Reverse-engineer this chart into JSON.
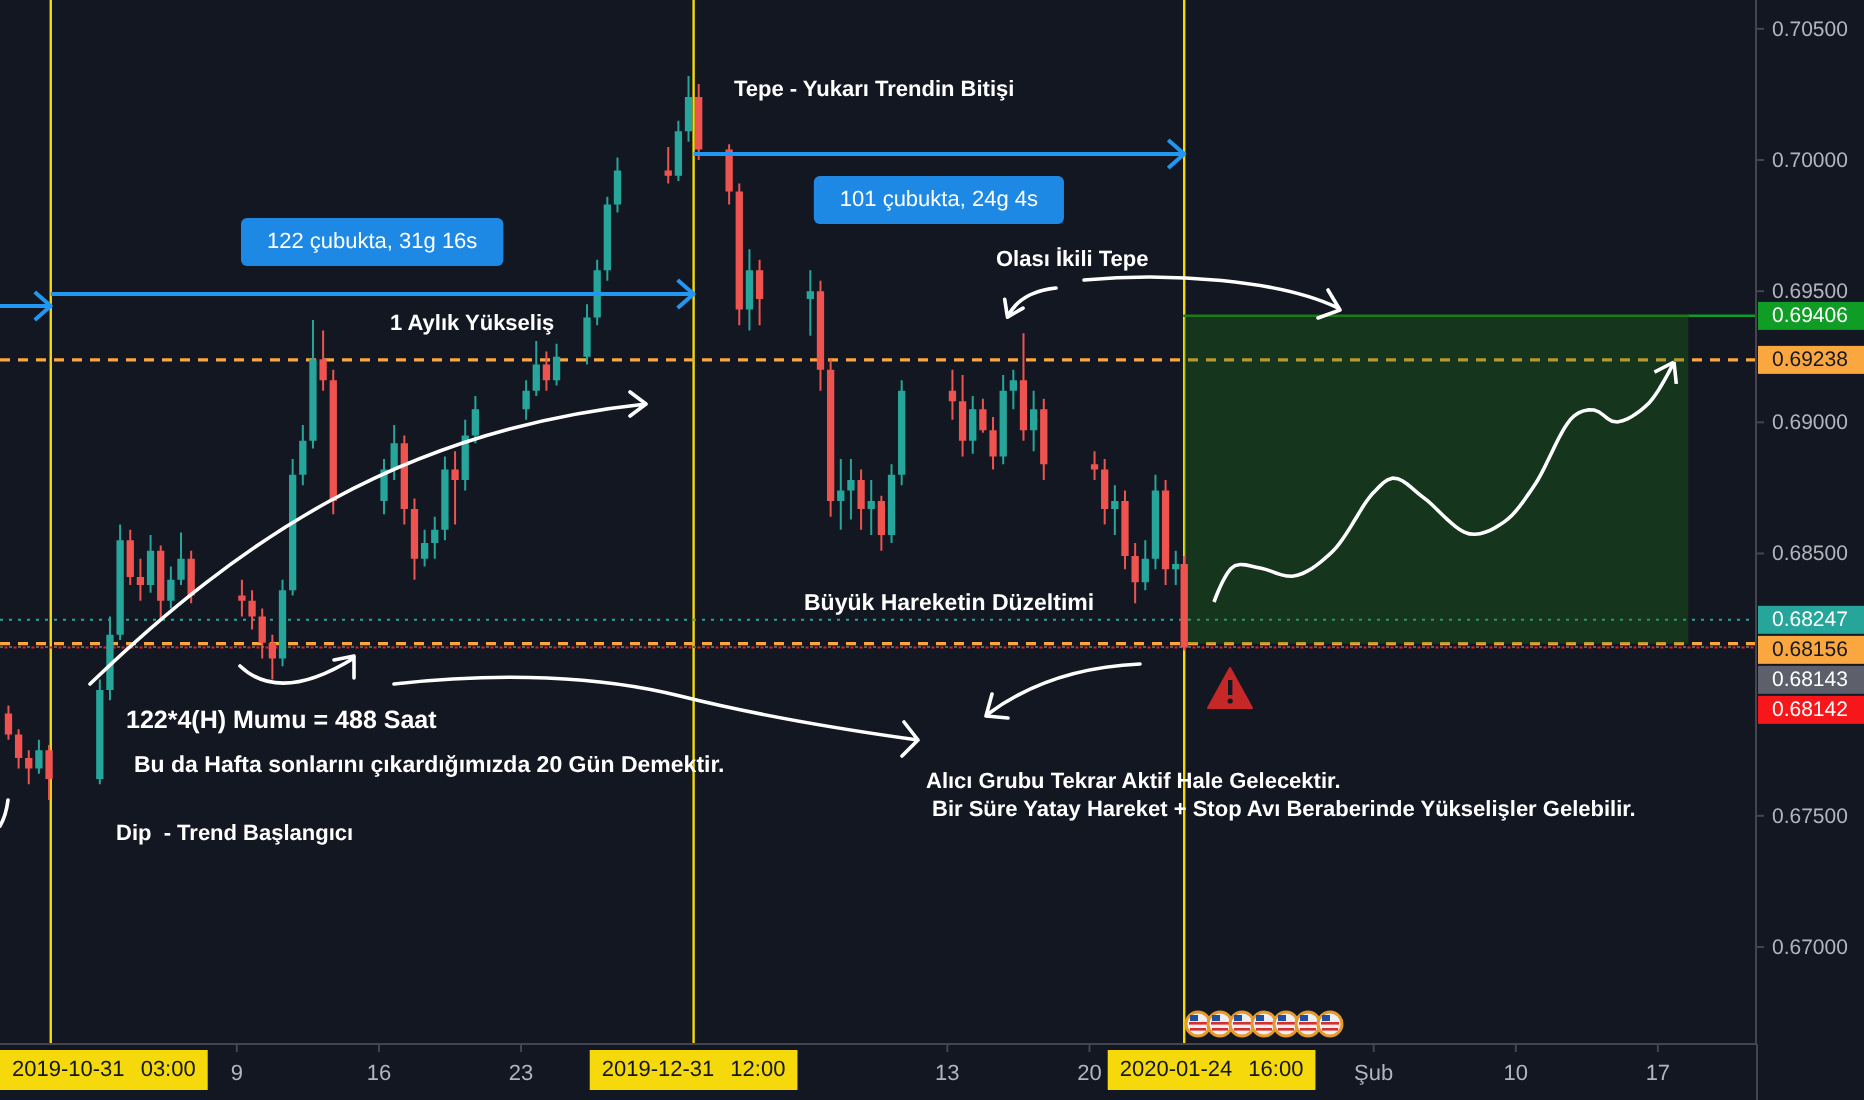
{
  "chart_data": {
    "type": "candlestick",
    "x": [
      "2019-11-27T18:00",
      "2019-11-28T06:00",
      "2019-11-28T18:00",
      "2019-11-29T06:00",
      "2019-11-29T18:00",
      "2019-12-02T06:00",
      "2019-12-02T18:00",
      "2019-12-03T06:00",
      "2019-12-03T18:00",
      "2019-12-04T06:00",
      "2019-12-04T18:00",
      "2019-12-05T06:00",
      "2019-12-05T18:00",
      "2019-12-06T06:00",
      "2019-12-06T18:00",
      "2019-12-09T06:00",
      "2019-12-09T18:00",
      "2019-12-10T06:00",
      "2019-12-10T18:00",
      "2019-12-11T06:00",
      "2019-12-11T18:00",
      "2019-12-12T06:00",
      "2019-12-12T18:00",
      "2019-12-13T06:00",
      "2019-12-13T18:00",
      "2019-12-16T06:00",
      "2019-12-16T18:00",
      "2019-12-17T06:00",
      "2019-12-17T18:00",
      "2019-12-18T06:00",
      "2019-12-18T18:00",
      "2019-12-19T06:00",
      "2019-12-19T18:00",
      "2019-12-20T06:00",
      "2019-12-20T18:00",
      "2019-12-23T06:00",
      "2019-12-23T18:00",
      "2019-12-24T06:00",
      "2019-12-24T18:00",
      "2019-12-26T06:00",
      "2019-12-26T18:00",
      "2019-12-27T06:00",
      "2019-12-27T18:00",
      "2019-12-30T06:00",
      "2019-12-30T18:00",
      "2019-12-31T06:00",
      "2019-12-31T18:00",
      "2020-01-02T06:00",
      "2020-01-02T18:00",
      "2020-01-03T06:00",
      "2020-01-03T18:00",
      "2020-01-06T06:00",
      "2020-01-06T18:00",
      "2020-01-07T06:00",
      "2020-01-07T18:00",
      "2020-01-08T06:00",
      "2020-01-08T18:00",
      "2020-01-09T06:00",
      "2020-01-09T18:00",
      "2020-01-10T06:00",
      "2020-01-10T18:00",
      "2020-01-13T06:00",
      "2020-01-13T18:00",
      "2020-01-14T06:00",
      "2020-01-14T18:00",
      "2020-01-15T06:00",
      "2020-01-15T18:00",
      "2020-01-16T06:00",
      "2020-01-16T18:00",
      "2020-01-17T06:00",
      "2020-01-17T18:00",
      "2020-01-20T06:00",
      "2020-01-20T18:00",
      "2020-01-21T06:00",
      "2020-01-21T18:00",
      "2020-01-22T06:00",
      "2020-01-22T18:00",
      "2020-01-23T06:00",
      "2020-01-23T18:00",
      "2020-01-24T06:00",
      "2020-01-24T16:00"
    ],
    "ohlc": [
      [
        0.6789,
        0.6792,
        0.6779,
        0.6781
      ],
      [
        0.6781,
        0.6783,
        0.6768,
        0.6772
      ],
      [
        0.6772,
        0.6775,
        0.6762,
        0.6768
      ],
      [
        0.6768,
        0.6779,
        0.6766,
        0.6775
      ],
      [
        0.6775,
        0.6777,
        0.6756,
        0.6764
      ],
      [
        0.6764,
        0.6802,
        0.6762,
        0.6798
      ],
      [
        0.6798,
        0.6826,
        0.6794,
        0.6819
      ],
      [
        0.6819,
        0.6861,
        0.6817,
        0.6855
      ],
      [
        0.6855,
        0.6859,
        0.6838,
        0.6841
      ],
      [
        0.6841,
        0.6848,
        0.6832,
        0.6838
      ],
      [
        0.6838,
        0.6857,
        0.6835,
        0.6851
      ],
      [
        0.6851,
        0.6853,
        0.6825,
        0.6832
      ],
      [
        0.6832,
        0.6845,
        0.6829,
        0.684
      ],
      [
        0.684,
        0.6858,
        0.6838,
        0.6848
      ],
      [
        0.6848,
        0.6851,
        0.6831,
        0.6834
      ],
      [
        0.6834,
        0.684,
        0.6826,
        0.6832
      ],
      [
        0.6832,
        0.6836,
        0.6821,
        0.6826
      ],
      [
        0.6826,
        0.6829,
        0.681,
        0.6816
      ],
      [
        0.6816,
        0.6819,
        0.6802,
        0.681
      ],
      [
        0.681,
        0.684,
        0.6807,
        0.6836
      ],
      [
        0.6836,
        0.6886,
        0.6834,
        0.688
      ],
      [
        0.688,
        0.6899,
        0.6876,
        0.6893
      ],
      [
        0.6893,
        0.6939,
        0.689,
        0.6924
      ],
      [
        0.6924,
        0.6935,
        0.6912,
        0.6916
      ],
      [
        0.6916,
        0.692,
        0.6865,
        0.687
      ],
      [
        0.687,
        0.6886,
        0.6865,
        0.6882
      ],
      [
        0.6882,
        0.6899,
        0.6878,
        0.6892
      ],
      [
        0.6892,
        0.6895,
        0.6861,
        0.6867
      ],
      [
        0.6867,
        0.6871,
        0.684,
        0.6848
      ],
      [
        0.6848,
        0.6859,
        0.6845,
        0.6854
      ],
      [
        0.6854,
        0.6864,
        0.6848,
        0.6859
      ],
      [
        0.6859,
        0.6887,
        0.6855,
        0.6882
      ],
      [
        0.6882,
        0.6889,
        0.6861,
        0.6878
      ],
      [
        0.6878,
        0.6901,
        0.6874,
        0.6895
      ],
      [
        0.6895,
        0.691,
        0.6892,
        0.6905
      ],
      [
        0.6905,
        0.6916,
        0.6901,
        0.6912
      ],
      [
        0.6912,
        0.6931,
        0.691,
        0.6922
      ],
      [
        0.6922,
        0.6927,
        0.6912,
        0.6916
      ],
      [
        0.6916,
        0.693,
        0.6914,
        0.6925
      ],
      [
        0.6925,
        0.6945,
        0.6922,
        0.694
      ],
      [
        0.694,
        0.6962,
        0.6937,
        0.6958
      ],
      [
        0.6958,
        0.6986,
        0.6954,
        0.6983
      ],
      [
        0.6983,
        0.7001,
        0.698,
        0.6996
      ],
      [
        0.6996,
        0.7005,
        0.6991,
        0.6994
      ],
      [
        0.6994,
        0.7015,
        0.6992,
        0.7011
      ],
      [
        0.7011,
        0.7032,
        0.7007,
        0.7024
      ],
      [
        0.7024,
        0.7029,
        0.7,
        0.7004
      ],
      [
        0.7004,
        0.7006,
        0.6983,
        0.6988
      ],
      [
        0.6988,
        0.6991,
        0.6937,
        0.6943
      ],
      [
        0.6943,
        0.6966,
        0.6935,
        0.6958
      ],
      [
        0.6958,
        0.6962,
        0.6937,
        0.6947
      ],
      [
        0.6947,
        0.6958,
        0.6933,
        0.695
      ],
      [
        0.695,
        0.6954,
        0.6912,
        0.692
      ],
      [
        0.692,
        0.6924,
        0.6864,
        0.687
      ],
      [
        0.687,
        0.6886,
        0.6859,
        0.6874
      ],
      [
        0.6874,
        0.6886,
        0.6863,
        0.6878
      ],
      [
        0.6878,
        0.6882,
        0.6859,
        0.6867
      ],
      [
        0.6867,
        0.6878,
        0.6857,
        0.687
      ],
      [
        0.687,
        0.6872,
        0.6851,
        0.6857
      ],
      [
        0.6857,
        0.6884,
        0.6854,
        0.688
      ],
      [
        0.688,
        0.6916,
        0.6876,
        0.6912
      ],
      [
        0.6912,
        0.692,
        0.6901,
        0.6908
      ],
      [
        0.6908,
        0.6918,
        0.6887,
        0.6893
      ],
      [
        0.6893,
        0.691,
        0.6888,
        0.6905
      ],
      [
        0.6905,
        0.6909,
        0.6896,
        0.6897
      ],
      [
        0.6897,
        0.6902,
        0.6882,
        0.6887
      ],
      [
        0.6887,
        0.6918,
        0.6884,
        0.6912
      ],
      [
        0.6912,
        0.692,
        0.6905,
        0.6916
      ],
      [
        0.6916,
        0.6934,
        0.6893,
        0.6897
      ],
      [
        0.6897,
        0.6912,
        0.6889,
        0.6905
      ],
      [
        0.6905,
        0.6909,
        0.6878,
        0.6884
      ],
      [
        0.6884,
        0.6889,
        0.6878,
        0.6882
      ],
      [
        0.6882,
        0.6886,
        0.6861,
        0.6867
      ],
      [
        0.6867,
        0.6876,
        0.6857,
        0.687
      ],
      [
        0.687,
        0.6874,
        0.6844,
        0.6849
      ],
      [
        0.6849,
        0.6854,
        0.6831,
        0.6839
      ],
      [
        0.6839,
        0.6855,
        0.6836,
        0.6848
      ],
      [
        0.6848,
        0.688,
        0.6844,
        0.6874
      ],
      [
        0.6874,
        0.6878,
        0.6838,
        0.6844
      ],
      [
        0.6844,
        0.6851,
        0.6838,
        0.6846
      ],
      [
        0.6846,
        0.6849,
        0.6813,
        0.68142
      ]
    ],
    "series": [
      {
        "type": "line",
        "x": [
          "2020-01-24T16:00",
          "2020-02-18T12:00"
        ],
        "values": [
          0.69406,
          0.69406
        ],
        "lower": [
          0.68156,
          0.68156
        ],
        "upper": [
          0.69406,
          0.69406
        ],
        "color": "#1d7b15"
      }
    ],
    "xlim": [
      "2019-11-27T08:00",
      "2020-02-21T20:00"
    ],
    "xticks": [
      {
        "value": "2019-12-09",
        "label": "9"
      },
      {
        "value": "2019-12-16",
        "label": "16"
      },
      {
        "value": "2019-12-23",
        "label": "23"
      },
      {
        "value": "2020-01-13",
        "label": "13"
      },
      {
        "value": "2020-01-20",
        "label": "20"
      },
      {
        "value": "2020-02-03",
        "label": "Şub"
      },
      {
        "value": "2020-02-10",
        "label": "10"
      },
      {
        "value": "2020-02-17",
        "label": "17"
      }
    ],
    "ylim": [
      0.6663,
      0.7061
    ],
    "yticks": [
      {
        "value": 0.67,
        "label": "0.67000"
      },
      {
        "value": 0.675,
        "label": "0.67500"
      },
      {
        "value": 0.685,
        "label": "0.68500"
      },
      {
        "value": 0.69,
        "label": "0.69000"
      },
      {
        "value": 0.695,
        "label": "0.69500"
      },
      {
        "value": 0.7,
        "label": "0.70000"
      },
      {
        "value": 0.705,
        "label": "0.70500"
      }
    ],
    "ref_lines": [
      {
        "axis": "x",
        "value": "2019-11-29T20:00",
        "label": "2019-10-31 03:00",
        "color": "#f5d90a",
        "line_style": "solid"
      },
      {
        "axis": "x",
        "value": "2019-12-31T12:00",
        "label": "2019-12-31 12:00",
        "color": "#f5d90a",
        "line_style": "solid"
      },
      {
        "axis": "x",
        "value": "2020-01-24T16:00",
        "label": "2020-01-24 16:00",
        "color": "#f5d90a",
        "line_style": "solid"
      },
      {
        "axis": "y",
        "value": 0.69238,
        "label": "0.69238",
        "color": "#f9a73e",
        "line_style": "dashed"
      },
      {
        "axis": "y",
        "value": 0.68156,
        "label": "0.68156",
        "color": "#f9a73e",
        "line_style": "dashed"
      },
      {
        "axis": "y",
        "value": 0.68247,
        "label": "0.68247",
        "color": "#26a69a",
        "line_style": "dotted"
      },
      {
        "axis": "y",
        "value": 0.69406,
        "label": "0.69406",
        "color": "#0f9d25"
      },
      {
        "axis": "y",
        "value": 0.68143,
        "label": "0.68143",
        "color": "#5d606b",
        "line_style": "dotted"
      },
      {
        "axis": "y",
        "value": 0.68142,
        "label": "0.68142",
        "color": "#f7171b",
        "line_style": "dotted"
      }
    ],
    "annotations": [
      "Tepe - Yukarı Trendin Bitişi",
      "122 çubukta, 31g 16s",
      "101 çubukta, 24g 4s",
      {
        "text": "Olası İkili Tepe",
        "x": "2020-01-16T18:00",
        "y": 0.6934
      },
      "1 Aylık Yükseliş",
      "Büyük Hareketin Düzeltimi",
      "122*4(H) Mumu = 488 Saat",
      "Bu da Hafta sonlarını çıkardığımızda 20 Gün Demektir.",
      "Dip  - Trend Başlangıcı",
      "Alıcı Grubu Tekrar Aktif Hale Gelecektir.",
      "Bir Süre Yatay Hareket + Stop Avı Beraberinde Yükselişler Gelebilir."
    ]
  }
}
